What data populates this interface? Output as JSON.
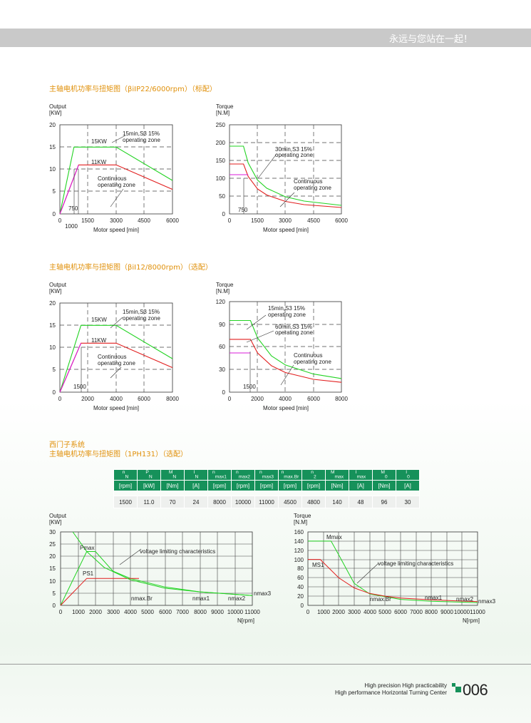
{
  "header": {
    "slogan": "永远与您站在一起！"
  },
  "sections": [
    {
      "title": "主轴电机功率与扭矩图（βiIP22/6000rpm）（标配）"
    },
    {
      "title": "主轴电机功率与扭矩图（βiI12/8000rpm）（选配）"
    },
    {
      "title_line1": "西门子系统",
      "title_line2": "主轴电机功率与扭矩图（1PH131）（选配）"
    }
  ],
  "charts": {
    "c1": {
      "ylabel1": "Output",
      "ylabel2": "[KW]",
      "xlabel": "Motor speed [min]",
      "yticks": [
        "20",
        "15",
        "10",
        "5",
        "0"
      ],
      "xticks": [
        "0",
        "1500",
        "3000",
        "4500",
        "6000"
      ],
      "xtick_extra": "1000",
      "ann": [
        "15KW",
        "11KW",
        "15min,S3 15%",
        "operating zone",
        "Continuous",
        "operating zone",
        "750"
      ]
    },
    "c2": {
      "ylabel1": "Torque",
      "ylabel2": "[N.M]",
      "xlabel": "Motor speed [min]",
      "yticks": [
        "250",
        "200",
        "150",
        "100",
        "50",
        "0"
      ],
      "xticks": [
        "0",
        "1500",
        "3000",
        "4500",
        "6000"
      ],
      "ann": [
        "30min,S3 15%",
        "operating zone",
        "Continuous",
        "operating zone",
        "750"
      ]
    },
    "c3": {
      "ylabel1": "Output",
      "ylabel2": "[KW]",
      "xlabel": "Motor speed [min]",
      "yticks": [
        "20",
        "15",
        "10",
        "5",
        "0"
      ],
      "xticks": [
        "0",
        "2000",
        "4000",
        "6000",
        "8000"
      ],
      "ann": [
        "15KW",
        "11KW",
        "15min,S3 15%",
        "operating zone",
        "Continuous",
        "operating zone",
        "1500"
      ]
    },
    "c4": {
      "ylabel1": "Torque",
      "ylabel2": "[N.M]",
      "xlabel": "Motor speed [min]",
      "yticks": [
        "120",
        "90",
        "60",
        "30",
        "0"
      ],
      "xticks": [
        "0",
        "2000",
        "4000",
        "6000",
        "8000"
      ],
      "ann": [
        "15min,S3 15%",
        "operating zone",
        "60min,S3 15%",
        "operating zone",
        "Continuous",
        "operating zone",
        "1500"
      ]
    },
    "c5": {
      "ylabel1": "Output",
      "ylabel2": "[KW]",
      "xlabel": "N[rpm]",
      "yticks": [
        "30",
        "25",
        "20",
        "15",
        "10",
        "5",
        "0"
      ],
      "xticks": [
        "0",
        "1000",
        "2000",
        "3000",
        "4000",
        "5000",
        "6000",
        "7000",
        "8000",
        "9000",
        "10000",
        "11000"
      ],
      "ann": [
        "Pmax",
        "PS1",
        "voltage limiting characteristics",
        "nmax.Br",
        "nmax1",
        "nmax2",
        "nmax3"
      ]
    },
    "c6": {
      "ylabel1": "Torque",
      "ylabel2": "[N.M]",
      "xlabel": "N[rpm]",
      "yticks": [
        "160",
        "140",
        "120",
        "100",
        "80",
        "60",
        "40",
        "20",
        "0"
      ],
      "xticks": [
        "0",
        "1000",
        "2000",
        "3000",
        "4000",
        "5000",
        "6000",
        "7000",
        "8000",
        "9000",
        "10000",
        "11000"
      ],
      "ann": [
        "Mmax",
        "MS1",
        "voltage limiting characteristics",
        "nmax.Br",
        "nmax1",
        "nmax2",
        "nmax3"
      ]
    }
  },
  "chart_data": [
    {
      "type": "line",
      "ylabel": "Output [KW]",
      "xlabel": "Motor speed [min]",
      "xlim": [
        0,
        6000
      ],
      "ylim": [
        0,
        20
      ],
      "series": [
        {
          "x": [
            0,
            750,
            3000,
            6000
          ],
          "y": [
            0,
            15,
            15,
            7.5
          ]
        },
        {
          "x": [
            0,
            1000,
            3000,
            6000
          ],
          "y": [
            0,
            11,
            11,
            5.5
          ]
        },
        {
          "x": [
            0,
            1000
          ],
          "y": [
            0,
            11
          ]
        }
      ]
    },
    {
      "type": "line",
      "ylabel": "Torque [N.M]",
      "xlabel": "Motor speed [min]",
      "xlim": [
        0,
        6000
      ],
      "ylim": [
        0,
        250
      ],
      "series": [
        {
          "x": [
            0,
            750,
            1000,
            1500,
            2000,
            3000,
            4000,
            6000
          ],
          "y": [
            190,
            190,
            143,
            95,
            72,
            48,
            36,
            24
          ]
        },
        {
          "x": [
            0,
            750,
            1000,
            1500,
            2000,
            3000,
            4000,
            6000
          ],
          "y": [
            140,
            140,
            105,
            70,
            53,
            35,
            26,
            18
          ]
        },
        {
          "x": [
            0,
            1000
          ],
          "y": [
            110,
            110
          ]
        }
      ]
    },
    {
      "type": "line",
      "ylabel": "Output [KW]",
      "xlabel": "Motor speed [min]",
      "xlim": [
        0,
        8000
      ],
      "ylim": [
        0,
        20
      ],
      "series": [
        {
          "x": [
            0,
            1500,
            4000,
            8000
          ],
          "y": [
            0,
            15,
            15,
            7.5
          ]
        },
        {
          "x": [
            0,
            1500,
            4000,
            8000
          ],
          "y": [
            0,
            11,
            11,
            5.5
          ]
        },
        {
          "x": [
            0,
            1500
          ],
          "y": [
            0,
            11
          ]
        }
      ]
    },
    {
      "type": "line",
      "ylabel": "Torque [N.M]",
      "xlabel": "Motor speed [min]",
      "xlim": [
        0,
        8000
      ],
      "ylim": [
        0,
        120
      ],
      "series": [
        {
          "x": [
            0,
            1500,
            2000,
            3000,
            4000,
            6000,
            8000
          ],
          "y": [
            95,
            95,
            72,
            48,
            36,
            24,
            18
          ]
        },
        {
          "x": [
            0,
            1500,
            2000,
            3000,
            4000,
            6000,
            8000
          ],
          "y": [
            70,
            70,
            52,
            35,
            26,
            17,
            13
          ]
        },
        {
          "x": [
            0,
            1500
          ],
          "y": [
            52,
            52
          ]
        }
      ]
    },
    {
      "type": "line",
      "ylabel": "Output [KW]",
      "xlabel": "N[rpm]",
      "xlim": [
        0,
        11000
      ],
      "ylim": [
        0,
        30
      ],
      "series": [
        {
          "name": "Pmax",
          "x": [
            0,
            1500,
            2000,
            3000,
            4000,
            6000,
            8000,
            11000
          ],
          "y": [
            0,
            22,
            22,
            14,
            11,
            7.5,
            5.5,
            4
          ]
        },
        {
          "name": "PS1",
          "x": [
            0,
            1500,
            4500
          ],
          "y": [
            0,
            11,
            11
          ]
        },
        {
          "name": "voltage limiting characteristics",
          "x": [
            700,
            1500,
            2500,
            4000,
            6000,
            8000,
            11000
          ],
          "y": [
            30,
            22,
            15.5,
            10.5,
            7,
            5.5,
            4
          ]
        }
      ]
    },
    {
      "type": "line",
      "ylabel": "Torque [N.M]",
      "xlabel": "N[rpm]",
      "xlim": [
        0,
        11000
      ],
      "ylim": [
        0,
        160
      ],
      "series": [
        {
          "name": "Mmax",
          "x": [
            0,
            1500,
            2000,
            3000,
            4000,
            6000,
            8000,
            11000
          ],
          "y": [
            140,
            140,
            110,
            48,
            25,
            13,
            9,
            6
          ]
        },
        {
          "name": "MS1",
          "x": [
            0,
            800,
            2000,
            3000,
            4000,
            5000,
            6000,
            8000,
            11000
          ],
          "y": [
            100,
            100,
            60,
            38,
            26,
            20,
            16,
            12,
            8
          ]
        }
      ]
    }
  ],
  "table": {
    "header_sym": [
      "n",
      "P",
      "M",
      "I",
      "n",
      "n",
      "n",
      "n",
      "n",
      "M",
      "I",
      "M",
      "I"
    ],
    "header_sub": [
      "N",
      "N",
      "N",
      "N",
      "max1",
      "max2",
      "max3",
      "max.Br",
      "2",
      "max",
      "max",
      "0",
      "0"
    ],
    "units": [
      "[rpm]",
      "[kW]",
      "[Nm]",
      "[A]",
      "[rpm]",
      "[rpm]",
      "[rpm]",
      "[rpm]",
      "[rpm]",
      "[Nm]",
      "[A]",
      "[Nm]",
      "[A]"
    ],
    "values": [
      "1500",
      "11.0",
      "70",
      "24",
      "8000",
      "10000",
      "11000",
      "4500",
      "4800",
      "140",
      "48",
      "96",
      "30"
    ]
  },
  "footer": {
    "line1": "High precision High practicability",
    "line2": "High performance Horizontal Turning Center",
    "page": "006"
  },
  "colors": {
    "green": "#22d322",
    "red": "#e21e1e",
    "magenta": "#d81bd8",
    "brand": "#16915a",
    "title": "#e0900a"
  }
}
